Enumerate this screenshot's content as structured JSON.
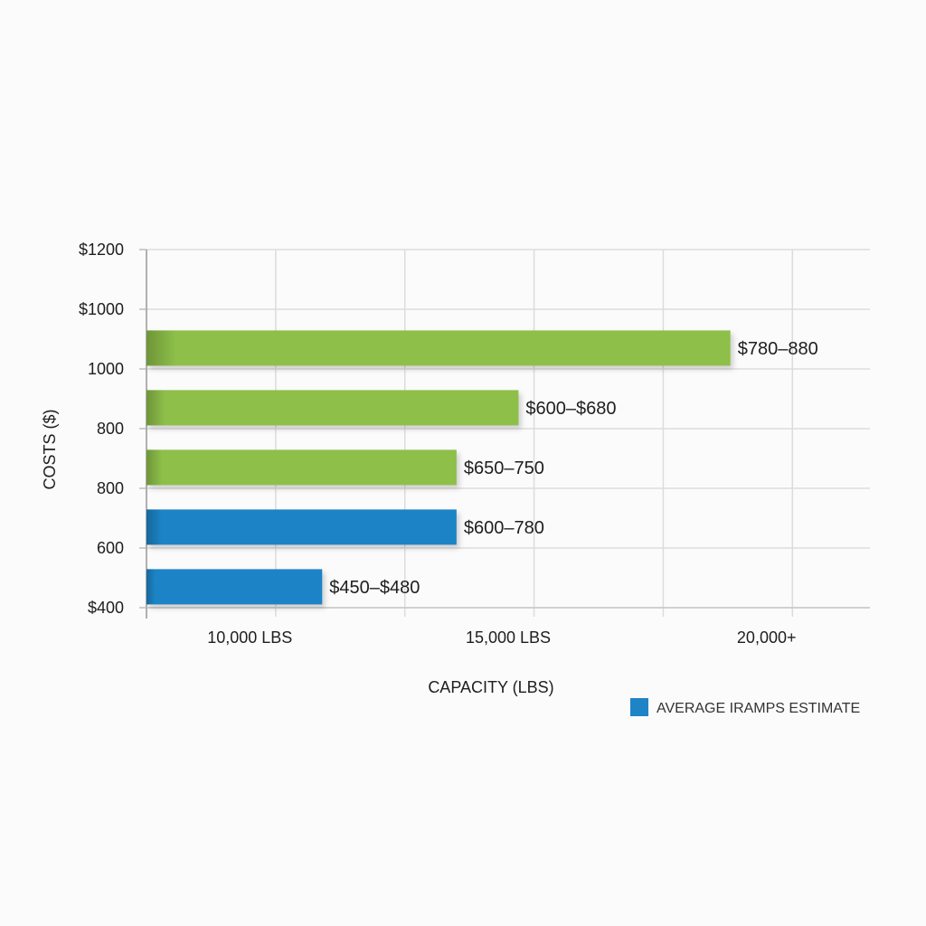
{
  "chart_data": {
    "type": "bar",
    "orientation": "horizontal",
    "title": "",
    "xlabel": "CAPACITY (LBS)",
    "ylabel": "COSTS ($)",
    "y_tick_labels": [
      "$1200",
      "$1000",
      "1000",
      "800",
      "800",
      "600",
      "$400"
    ],
    "x_tick_labels": [
      "10,000 LBS",
      "15,000 LBS",
      "20,000+"
    ],
    "xlim": [
      8000,
      22000
    ],
    "x_tick_values": [
      10000,
      15000,
      20000
    ],
    "grid": true,
    "bars": [
      {
        "value": 19300,
        "label": "$780–880",
        "color": "#8dbf48"
      },
      {
        "value": 15200,
        "label": "$600–$680",
        "color": "#8dbf48"
      },
      {
        "value": 14000,
        "label": "$650–750",
        "color": "#8dbf48"
      },
      {
        "value": 14000,
        "label": "$600–780",
        "color": "#1f84c6"
      },
      {
        "value": 11400,
        "label": "$450–$480",
        "color": "#1f84c6"
      }
    ],
    "legend": {
      "position": "bottom-right",
      "entries": [
        {
          "label": "AVERAGE IRAMPS ESTIMATE",
          "color": "#1f84c6"
        }
      ]
    }
  }
}
